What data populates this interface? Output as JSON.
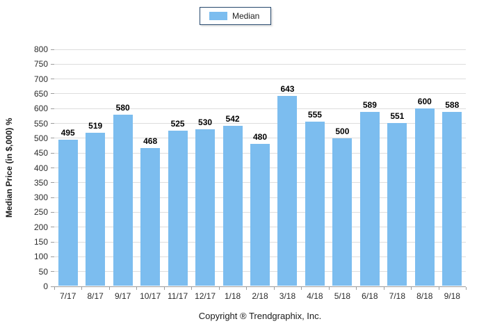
{
  "legend": {
    "items": [
      {
        "label": "Median",
        "color": "#7CBDEF"
      }
    ]
  },
  "footer": {
    "copyright": "Copyright ® Trendgraphix, Inc."
  },
  "colors": {
    "bar": "#7CBDEF",
    "grid": "#DDDDDD",
    "axis": "#9B9B9B",
    "legend_border": "#24466B",
    "text": "#2b2b2b"
  },
  "chart_data": {
    "type": "bar",
    "title": "",
    "categories": [
      "7/17",
      "8/17",
      "9/17",
      "10/17",
      "11/17",
      "12/17",
      "1/18",
      "2/18",
      "3/18",
      "4/18",
      "5/18",
      "6/18",
      "7/18",
      "8/18",
      "9/18"
    ],
    "series": [
      {
        "name": "Median",
        "values": [
          495,
          519,
          580,
          468,
          525,
          530,
          542,
          480,
          643,
          555,
          500,
          589,
          551,
          600,
          588
        ]
      }
    ],
    "xlabel": "",
    "ylabel": "Median Price (in $,000) %",
    "ylim": [
      0,
      800
    ],
    "ytick_step": 50,
    "grid": true,
    "legend_position": "top-center",
    "value_labels": true
  }
}
